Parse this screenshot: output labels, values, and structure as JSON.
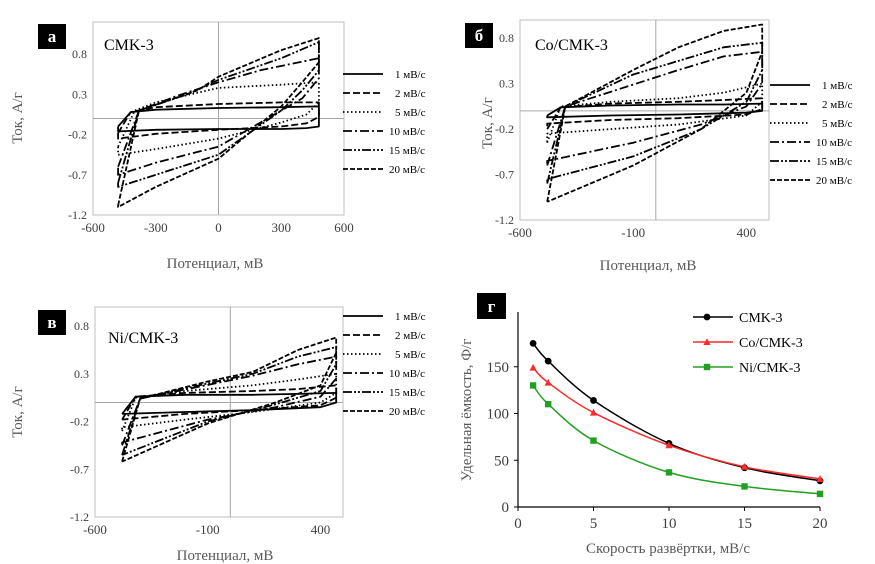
{
  "figure": {
    "panels": [
      {
        "id": "a",
        "letter": "а",
        "sample": "CMK-3"
      },
      {
        "id": "b",
        "letter": "б",
        "sample": "Co/CMK-3"
      },
      {
        "id": "c",
        "letter": "в",
        "sample": "Ni/CMK-3"
      },
      {
        "id": "d",
        "letter": "г"
      }
    ]
  },
  "chart_data": [
    {
      "panel": "а",
      "type": "line",
      "title": "CMK-3",
      "xlabel": "Потенциал, мВ",
      "ylabel": "Ток, А/г",
      "xlim": [
        -600,
        600
      ],
      "ylim": [
        -1.2,
        1.2
      ],
      "xticks": [
        -600,
        -300,
        0,
        300,
        600
      ],
      "yticks": [
        -1.2,
        -0.7,
        -0.2,
        0.3,
        0.8
      ],
      "legend_position": "right",
      "series": [
        {
          "name": "1 мВ/с",
          "style": "solid",
          "upper": [
            [
              -480,
              -0.1
            ],
            [
              -420,
              0.08
            ],
            [
              -300,
              0.11
            ],
            [
              0,
              0.13
            ],
            [
              300,
              0.14
            ],
            [
              480,
              0.15
            ]
          ],
          "lower": [
            [
              480,
              -0.1
            ],
            [
              420,
              -0.12
            ],
            [
              300,
              -0.13
            ],
            [
              0,
              -0.13
            ],
            [
              -300,
              -0.14
            ],
            [
              -480,
              -0.16
            ]
          ]
        },
        {
          "name": "2 мВ/с",
          "style": "dash",
          "upper": [
            [
              -480,
              -0.18
            ],
            [
              -420,
              0.08
            ],
            [
              -300,
              0.14
            ],
            [
              0,
              0.18
            ],
            [
              300,
              0.2
            ],
            [
              480,
              0.2
            ]
          ],
          "lower": [
            [
              480,
              0.02
            ],
            [
              420,
              -0.06
            ],
            [
              300,
              -0.1
            ],
            [
              0,
              -0.14
            ],
            [
              -300,
              -0.19
            ],
            [
              -480,
              -0.25
            ]
          ]
        },
        {
          "name": "5 мВ/с",
          "style": "dot",
          "upper": [
            [
              -480,
              -0.35
            ],
            [
              -400,
              0.1
            ],
            [
              -300,
              0.2
            ],
            [
              0,
              0.38
            ],
            [
              300,
              0.42
            ],
            [
              480,
              0.45
            ]
          ],
          "lower": [
            [
              480,
              0.2
            ],
            [
              420,
              0.05
            ],
            [
              300,
              -0.05
            ],
            [
              0,
              -0.25
            ],
            [
              -300,
              -0.38
            ],
            [
              -480,
              -0.45
            ]
          ]
        },
        {
          "name": "10 мВ/с",
          "style": "dashdot",
          "upper": [
            [
              -480,
              -0.6
            ],
            [
              -380,
              0.1
            ],
            [
              -200,
              0.28
            ],
            [
              0,
              0.45
            ],
            [
              200,
              0.6
            ],
            [
              480,
              0.75
            ]
          ],
          "lower": [
            [
              480,
              0.5
            ],
            [
              400,
              0.25
            ],
            [
              300,
              0.1
            ],
            [
              0,
              -0.35
            ],
            [
              -300,
              -0.55
            ],
            [
              -480,
              -0.7
            ]
          ]
        },
        {
          "name": "15 мВ/с",
          "style": "dashdotdot",
          "upper": [
            [
              -480,
              -0.8
            ],
            [
              -380,
              0.1
            ],
            [
              -150,
              0.3
            ],
            [
              0,
              0.48
            ],
            [
              300,
              0.75
            ],
            [
              480,
              0.95
            ]
          ],
          "lower": [
            [
              480,
              0.6
            ],
            [
              400,
              0.35
            ],
            [
              300,
              0.1
            ],
            [
              0,
              -0.45
            ],
            [
              -300,
              -0.7
            ],
            [
              -480,
              -0.85
            ]
          ]
        },
        {
          "name": "20 мВ/с",
          "style": "longdash",
          "upper": [
            [
              -480,
              -1.08
            ],
            [
              -380,
              0.1
            ],
            [
              -100,
              0.35
            ],
            [
              0,
              0.52
            ],
            [
              300,
              0.85
            ],
            [
              480,
              1.0
            ]
          ],
          "lower": [
            [
              480,
              0.7
            ],
            [
              400,
              0.45
            ],
            [
              300,
              0.15
            ],
            [
              0,
              -0.5
            ],
            [
              -300,
              -0.85
            ],
            [
              -480,
              -1.1
            ]
          ]
        }
      ]
    },
    {
      "panel": "б",
      "type": "line",
      "title": "Co/CMK-3",
      "xlabel": "Потенциал, мВ",
      "ylabel": "Ток, А/г",
      "xlim": [
        -600,
        500
      ],
      "ylim": [
        -1.2,
        1.0
      ],
      "xticks": [
        -600,
        -100,
        400
      ],
      "yticks": [
        -1.2,
        -0.7,
        -0.2,
        0.3,
        0.8
      ],
      "legend_position": "right",
      "series": [
        {
          "name": "1 мВ/с",
          "style": "solid",
          "upper": [
            [
              -480,
              -0.05
            ],
            [
              -420,
              0.04
            ],
            [
              -200,
              0.06
            ],
            [
              100,
              0.07
            ],
            [
              300,
              0.07
            ],
            [
              470,
              0.08
            ]
          ],
          "lower": [
            [
              470,
              0.0
            ],
            [
              400,
              -0.02
            ],
            [
              100,
              -0.04
            ],
            [
              -200,
              -0.05
            ],
            [
              -480,
              -0.07
            ]
          ]
        },
        {
          "name": "2 мВ/с",
          "style": "dash",
          "upper": [
            [
              -480,
              -0.2
            ],
            [
              -420,
              0.04
            ],
            [
              -200,
              0.08
            ],
            [
              100,
              0.1
            ],
            [
              300,
              0.12
            ],
            [
              470,
              0.14
            ]
          ],
          "lower": [
            [
              470,
              0.02
            ],
            [
              400,
              -0.04
            ],
            [
              100,
              -0.08
            ],
            [
              -200,
              -0.1
            ],
            [
              -480,
              -0.14
            ]
          ]
        },
        {
          "name": "5 мВ/с",
          "style": "dot",
          "upper": [
            [
              -480,
              -0.35
            ],
            [
              -420,
              0.05
            ],
            [
              -200,
              0.1
            ],
            [
              100,
              0.14
            ],
            [
              300,
              0.2
            ],
            [
              470,
              0.3
            ]
          ],
          "lower": [
            [
              470,
              0.1
            ],
            [
              400,
              -0.05
            ],
            [
              100,
              -0.15
            ],
            [
              -200,
              -0.2
            ],
            [
              -480,
              -0.25
            ]
          ]
        },
        {
          "name": "10 мВ/с",
          "style": "dashdot",
          "upper": [
            [
              -480,
              -0.6
            ],
            [
              -400,
              0.05
            ],
            [
              -150,
              0.25
            ],
            [
              100,
              0.45
            ],
            [
              300,
              0.6
            ],
            [
              470,
              0.65
            ]
          ],
          "lower": [
            [
              470,
              0.3
            ],
            [
              400,
              0.05
            ],
            [
              200,
              -0.15
            ],
            [
              -100,
              -0.35
            ],
            [
              -480,
              -0.55
            ]
          ]
        },
        {
          "name": "15 мВ/с",
          "style": "dashdotdot",
          "upper": [
            [
              -480,
              -0.8
            ],
            [
              -400,
              0.05
            ],
            [
              -100,
              0.4
            ],
            [
              100,
              0.55
            ],
            [
              300,
              0.7
            ],
            [
              470,
              0.75
            ]
          ],
          "lower": [
            [
              470,
              0.45
            ],
            [
              400,
              0.1
            ],
            [
              200,
              -0.2
            ],
            [
              -100,
              -0.5
            ],
            [
              -480,
              -0.75
            ]
          ]
        },
        {
          "name": "20 мВ/с",
          "style": "longdash",
          "upper": [
            [
              -480,
              -1.0
            ],
            [
              -400,
              0.05
            ],
            [
              -100,
              0.45
            ],
            [
              100,
              0.7
            ],
            [
              300,
              0.88
            ],
            [
              470,
              0.95
            ]
          ],
          "lower": [
            [
              470,
              0.65
            ],
            [
              400,
              0.2
            ],
            [
              200,
              -0.2
            ],
            [
              -100,
              -0.6
            ],
            [
              -480,
              -1.0
            ]
          ]
        }
      ]
    },
    {
      "panel": "в",
      "type": "line",
      "title": "Ni/CMK-3",
      "xlabel": "Потенциал, мВ",
      "ylabel": "Ток, А/г",
      "xlim": [
        -600,
        500
      ],
      "ylim": [
        -1.2,
        1.0
      ],
      "xticks": [
        -600,
        -100,
        400
      ],
      "yticks": [
        -1.2,
        -0.7,
        -0.2,
        0.3,
        0.8
      ],
      "legend_position": "right",
      "series": [
        {
          "name": "1 мВ/с",
          "style": "solid",
          "upper": [
            [
              -480,
              -0.12
            ],
            [
              -420,
              0.06
            ],
            [
              -200,
              0.08
            ],
            [
              100,
              0.08
            ],
            [
              300,
              0.09
            ],
            [
              470,
              0.1
            ]
          ],
          "lower": [
            [
              470,
              0.0
            ],
            [
              400,
              -0.05
            ],
            [
              100,
              -0.08
            ],
            [
              -200,
              -0.1
            ],
            [
              -480,
              -0.12
            ]
          ]
        },
        {
          "name": "2 мВ/с",
          "style": "dash",
          "upper": [
            [
              -480,
              -0.18
            ],
            [
              -420,
              0.06
            ],
            [
              -200,
              0.1
            ],
            [
              100,
              0.12
            ],
            [
              300,
              0.14
            ],
            [
              470,
              0.18
            ]
          ],
          "lower": [
            [
              470,
              0.05
            ],
            [
              400,
              -0.03
            ],
            [
              100,
              -0.08
            ],
            [
              -200,
              -0.12
            ],
            [
              -480,
              -0.18
            ]
          ]
        },
        {
          "name": "5 мВ/с",
          "style": "dot",
          "upper": [
            [
              -480,
              -0.3
            ],
            [
              -420,
              0.05
            ],
            [
              -200,
              0.12
            ],
            [
              100,
              0.18
            ],
            [
              300,
              0.24
            ],
            [
              470,
              0.3
            ]
          ],
          "lower": [
            [
              470,
              0.1
            ],
            [
              400,
              0.0
            ],
            [
              100,
              -0.1
            ],
            [
              -200,
              -0.18
            ],
            [
              -480,
              -0.26
            ]
          ]
        },
        {
          "name": "10 мВ/с",
          "style": "dashdot",
          "upper": [
            [
              -480,
              -0.45
            ],
            [
              -400,
              0.04
            ],
            [
              -150,
              0.16
            ],
            [
              100,
              0.28
            ],
            [
              300,
              0.4
            ],
            [
              470,
              0.48
            ]
          ],
          "lower": [
            [
              470,
              0.25
            ],
            [
              400,
              0.06
            ],
            [
              200,
              -0.05
            ],
            [
              -100,
              -0.18
            ],
            [
              -480,
              -0.42
            ]
          ]
        },
        {
          "name": "15 мВ/с",
          "style": "dashdotdot",
          "upper": [
            [
              -480,
              -0.55
            ],
            [
              -400,
              0.04
            ],
            [
              -100,
              0.2
            ],
            [
              100,
              0.3
            ],
            [
              300,
              0.48
            ],
            [
              470,
              0.58
            ]
          ],
          "lower": [
            [
              470,
              0.4
            ],
            [
              400,
              0.12
            ],
            [
              200,
              -0.02
            ],
            [
              -100,
              -0.2
            ],
            [
              -480,
              -0.55
            ]
          ]
        },
        {
          "name": "20 мВ/с",
          "style": "longdash",
          "upper": [
            [
              -480,
              -0.62
            ],
            [
              -400,
              0.04
            ],
            [
              -100,
              0.22
            ],
            [
              100,
              0.32
            ],
            [
              300,
              0.55
            ],
            [
              470,
              0.68
            ]
          ],
          "lower": [
            [
              470,
              0.52
            ],
            [
              400,
              0.18
            ],
            [
              200,
              0.0
            ],
            [
              -100,
              -0.22
            ],
            [
              -480,
              -0.62
            ]
          ]
        }
      ]
    },
    {
      "panel": "г",
      "type": "line",
      "xlabel": "Скорость развёртки, мВ/с",
      "ylabel": "Удельная ёмкость, Ф/г",
      "xlim": [
        0,
        20
      ],
      "ylim": [
        0,
        200
      ],
      "xticks": [
        0,
        5,
        10,
        15,
        20
      ],
      "yticks": [
        0,
        50,
        100,
        150
      ],
      "legend_position": "top-right",
      "x": [
        1,
        2,
        5,
        10,
        15,
        20
      ],
      "series": [
        {
          "name": "CMK-3",
          "color": "#000000",
          "marker": "circle",
          "values": [
            175,
            156,
            114,
            68,
            42,
            28
          ]
        },
        {
          "name": "Co/CMK-3",
          "color": "#ff2a2a",
          "marker": "triangle",
          "values": [
            149,
            133,
            101,
            66,
            43,
            30
          ]
        },
        {
          "name": "Ni/CMK-3",
          "color": "#22a022",
          "marker": "square",
          "values": [
            130,
            110,
            71,
            37,
            22,
            14
          ]
        }
      ]
    }
  ]
}
